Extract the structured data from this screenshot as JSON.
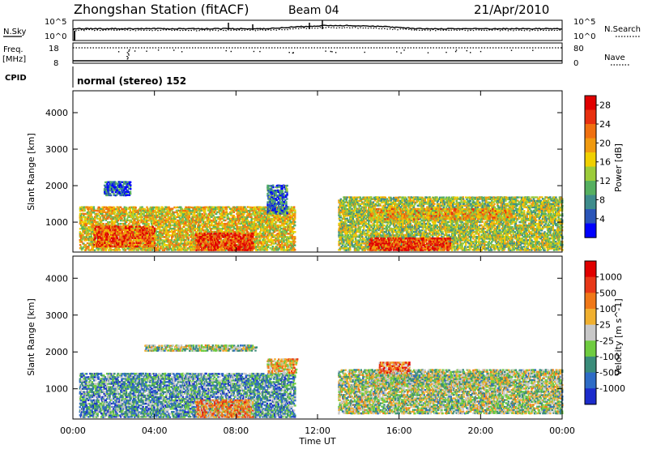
{
  "header": {
    "title": "Zhongshan Station (fitACF)",
    "beam": "Beam 04",
    "date": "21/Apr/2010"
  },
  "summary_panel": {
    "left_label": "N.Sky",
    "right_label": "N.Search",
    "left_ticks": [
      "10^5",
      "10^0"
    ],
    "right_ticks": [
      "10^5",
      "10^0"
    ]
  },
  "freq_panel": {
    "left_label": "Freq.",
    "left_unit": "[MHz]",
    "right_label": "Nave",
    "left_ticks": [
      "18",
      "8"
    ],
    "right_ticks": [
      "80",
      "0"
    ]
  },
  "cpid": {
    "label": "CPID",
    "value": "normal (stereo) 152"
  },
  "chart_data": [
    {
      "type": "heatmap",
      "name": "power",
      "ylabel": "Slant Range [km]",
      "yticks": [
        "1000",
        "2000",
        "3000",
        "4000"
      ],
      "ylim": [
        180,
        4600
      ],
      "colorbar_label": "Power [dB]",
      "colorbar_ticks": [
        "4",
        "8",
        "12",
        "16",
        "20",
        "24",
        "28"
      ],
      "colorbar_range": [
        0,
        30
      ],
      "colors": [
        "#0000ff",
        "#2a55b8",
        "#3e8c8c",
        "#56b060",
        "#9ccc3a",
        "#f0d000",
        "#f09a10",
        "#f07010",
        "#e83010",
        "#e00000"
      ],
      "scatter_bands": [
        {
          "t0": 0.3,
          "t1": 10.9,
          "r0": 200,
          "r1": 1400,
          "level": 0.55
        },
        {
          "t0": 6.0,
          "t1": 8.8,
          "r0": 200,
          "r1": 700,
          "level": 0.85
        },
        {
          "t0": 1.0,
          "t1": 4.0,
          "r0": 300,
          "r1": 900,
          "level": 0.8
        },
        {
          "t0": 9.5,
          "t1": 10.5,
          "r0": 1200,
          "r1": 2000,
          "level": 0.2
        },
        {
          "t0": 1.5,
          "t1": 2.8,
          "r0": 1700,
          "r1": 2100,
          "level": 0.15
        },
        {
          "t0": 13.0,
          "t1": 24.0,
          "r0": 200,
          "r1": 1700,
          "level": 0.45
        },
        {
          "t0": 14.5,
          "t1": 21.5,
          "r0": 1050,
          "r1": 1350,
          "level": 0.6
        },
        {
          "t0": 14.5,
          "t1": 18.5,
          "r0": 200,
          "r1": 550,
          "level": 0.85
        }
      ]
    },
    {
      "type": "heatmap",
      "name": "velocity",
      "ylabel": "Slant Range [km]",
      "yticks": [
        "1000",
        "2000",
        "3000",
        "4000"
      ],
      "ylim": [
        180,
        4600
      ],
      "xlabel": "Time UT",
      "xticks": [
        "00:00",
        "04:00",
        "08:00",
        "12:00",
        "16:00",
        "20:00",
        "00:00"
      ],
      "xlim": [
        0,
        24
      ],
      "colorbar_label": "Velocity [m s^-1]",
      "colorbar_ticks": [
        "1000",
        "500",
        "100",
        "25",
        "-25",
        "-100",
        "-500",
        "-1000"
      ],
      "colors": [
        "#1c2ccc",
        "#2e6cc6",
        "#3a8c7a",
        "#6fcc40",
        "#c8c8c8",
        "#f0b030",
        "#f07818",
        "#e83818",
        "#e00000"
      ],
      "scatter_bands": [
        {
          "t0": 0.3,
          "t1": 10.9,
          "r0": 200,
          "r1": 1400,
          "level": 0.3
        },
        {
          "t0": 6.0,
          "t1": 8.8,
          "r0": 200,
          "r1": 700,
          "level": 0.65
        },
        {
          "t0": 3.5,
          "t1": 9.0,
          "r0": 2000,
          "r1": 2200,
          "level": 0.45
        },
        {
          "t0": 9.5,
          "t1": 11.0,
          "r0": 1400,
          "r1": 1800,
          "level": 0.6
        },
        {
          "t0": 13.0,
          "t1": 24.0,
          "r0": 300,
          "r1": 1500,
          "level": 0.45
        },
        {
          "t0": 14.5,
          "t1": 21.5,
          "r0": 1050,
          "r1": 1350,
          "level": 0.45
        },
        {
          "t0": 15.0,
          "t1": 16.5,
          "r0": 1400,
          "r1": 1700,
          "level": 0.7
        }
      ]
    }
  ]
}
